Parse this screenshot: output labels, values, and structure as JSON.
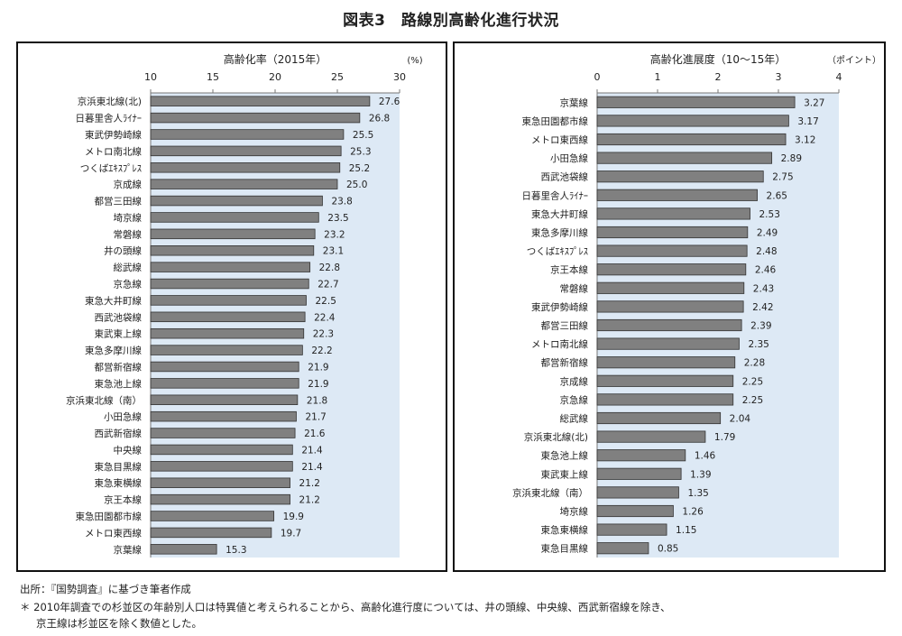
{
  "figure": {
    "title": "図表3　路線別高齢化進行状況"
  },
  "footnotes": {
    "source": "出所：『国勢調査』に基づき筆者作成",
    "note1": "＊ 2010年調査での杉並区の年齢別人口は特異値と考えられることから、高齢化進行度については、井の頭線、中央線、西武新宿線を除き、",
    "note2": "京王線は杉並区を除く数値とした。"
  },
  "chart_data": [
    {
      "type": "bar",
      "orientation": "horizontal",
      "title": "高齢化率（2015年）",
      "unit": "(%)",
      "xlim": [
        10,
        30
      ],
      "ticks": [
        10,
        15,
        20,
        25,
        30
      ],
      "grid": false,
      "bar_color": "#808080",
      "plot_bg": "#dde9f5",
      "categories": [
        "京浜東北線(北)",
        "日暮里舎人ﾗｲﾅｰ",
        "東武伊勢崎線",
        "メトロ南北線",
        "つくばｴｷｽﾌﾟﾚｽ",
        "京成線",
        "都営三田線",
        "埼京線",
        "常磐線",
        "井の頭線",
        "総武線",
        "京急線",
        "東急大井町線",
        "西武池袋線",
        "東武東上線",
        "東急多摩川線",
        "都営新宿線",
        "東急池上線",
        "京浜東北線（南）",
        "小田急線",
        "西武新宿線",
        "中央線",
        "東急目黒線",
        "東急東横線",
        "京王本線",
        "東急田園都市線",
        "メトロ東西線",
        "京葉線"
      ],
      "values": [
        27.6,
        26.8,
        25.5,
        25.3,
        25.2,
        25.0,
        23.8,
        23.5,
        23.2,
        23.1,
        22.8,
        22.7,
        22.5,
        22.4,
        22.3,
        22.2,
        21.9,
        21.9,
        21.8,
        21.7,
        21.6,
        21.4,
        21.4,
        21.2,
        21.2,
        19.9,
        19.7,
        15.3
      ],
      "labels": [
        "27.6",
        "26.8",
        "25.5",
        "25.3",
        "25.2",
        "25.0",
        "23.8",
        "23.5",
        "23.2",
        "23.1",
        "22.8",
        "22.7",
        "22.5",
        "22.4",
        "22.3",
        "22.2",
        "21.9",
        "21.9",
        "21.8",
        "21.7",
        "21.6",
        "21.4",
        "21.4",
        "21.2",
        "21.2",
        "19.9",
        "19.7",
        "15.3"
      ]
    },
    {
      "type": "bar",
      "orientation": "horizontal",
      "title": "高齢化進展度（10～15年）",
      "unit": "（ポイント）",
      "xlim": [
        0,
        4
      ],
      "ticks": [
        0,
        1,
        2,
        3,
        4
      ],
      "grid": false,
      "bar_color": "#808080",
      "plot_bg": "#dde9f5",
      "categories": [
        "京葉線",
        "東急田園都市線",
        "メトロ東西線",
        "小田急線",
        "西武池袋線",
        "日暮里舎人ﾗｲﾅｰ",
        "東急大井町線",
        "東急多摩川線",
        "つくばｴｷｽﾌﾟﾚｽ",
        "京王本線",
        "常磐線",
        "東武伊勢崎線",
        "都営三田線",
        "メトロ南北線",
        "都営新宿線",
        "京成線",
        "京急線",
        "総武線",
        "京浜東北線(北)",
        "東急池上線",
        "東武東上線",
        "京浜東北線（南）",
        "埼京線",
        "東急東横線",
        "東急目黒線"
      ],
      "values": [
        3.27,
        3.17,
        3.12,
        2.89,
        2.75,
        2.65,
        2.53,
        2.49,
        2.48,
        2.46,
        2.43,
        2.42,
        2.39,
        2.35,
        2.28,
        2.25,
        2.25,
        2.04,
        1.79,
        1.46,
        1.39,
        1.35,
        1.26,
        1.15,
        0.85
      ],
      "labels": [
        "3.27",
        "3.17",
        "3.12",
        "2.89",
        "2.75",
        "2.65",
        "2.53",
        "2.49",
        "2.48",
        "2.46",
        "2.43",
        "2.42",
        "2.39",
        "2.35",
        "2.28",
        "2.25",
        "2.25",
        "2.04",
        "1.79",
        "1.46",
        "1.39",
        "1.35",
        "1.26",
        "1.15",
        "0.85"
      ]
    }
  ]
}
